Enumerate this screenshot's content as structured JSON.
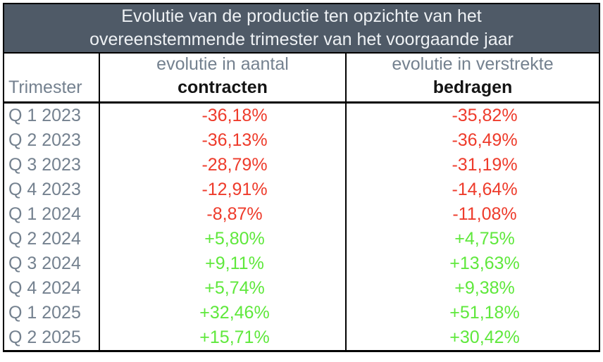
{
  "title": {
    "line1": "Evolutie van de productie ten opzichte van het",
    "line2": "overeenstemmende trimester van het voorgaande jaar"
  },
  "header": {
    "col1": "Trimester",
    "col2_line1": "evolutie in aantal",
    "col2_line2": "contracten",
    "col3_line1": "evolutie in verstrekte",
    "col3_line2": "bedragen"
  },
  "rows": [
    {
      "quarter": "Q 1 2023",
      "contracten": "-36,18%",
      "bedragen": "-35,82%"
    },
    {
      "quarter": "Q 2 2023",
      "contracten": "-36,13%",
      "bedragen": "-36,49%"
    },
    {
      "quarter": "Q 3 2023",
      "contracten": "-28,79%",
      "bedragen": "-31,19%"
    },
    {
      "quarter": "Q 4 2023",
      "contracten": "-12,91%",
      "bedragen": "-14,64%"
    },
    {
      "quarter": "Q 1 2024",
      "contracten": "-8,87%",
      "bedragen": "-11,08%"
    },
    {
      "quarter": "Q 2 2024",
      "contracten": "+5,80%",
      "bedragen": "+4,75%"
    },
    {
      "quarter": "Q 3 2024",
      "contracten": "+9,11%",
      "bedragen": "+13,63%"
    },
    {
      "quarter": "Q 4 2024",
      "contracten": "+5,74%",
      "bedragen": "+9,38%"
    },
    {
      "quarter": "Q 1 2025",
      "contracten": "+32,46%",
      "bedragen": "+51,18%"
    },
    {
      "quarter": "Q 2 2025",
      "contracten": "+15,71%",
      "bedragen": "+30,42%"
    }
  ],
  "colors": {
    "title_bg": "#4f5a67",
    "muted_text": "#74818f",
    "negative": "#ee3b2b",
    "positive": "#5fe83c",
    "border": "#000000"
  },
  "chart_data": {
    "type": "table",
    "title": "Evolutie van de productie ten opzichte van het overeenstemmende trimester van het voorgaande jaar",
    "columns": [
      "Trimester",
      "evolutie in aantal contracten",
      "evolutie in verstrekte bedragen"
    ],
    "rows": [
      [
        "Q 1 2023",
        "-36,18%",
        "-35,82%"
      ],
      [
        "Q 2 2023",
        "-36,13%",
        "-36,49%"
      ],
      [
        "Q 3 2023",
        "-28,79%",
        "-31,19%"
      ],
      [
        "Q 4 2023",
        "-12,91%",
        "-14,64%"
      ],
      [
        "Q 1 2024",
        "-8,87%",
        "-11,08%"
      ],
      [
        "Q 2 2024",
        "+5,80%",
        "+4,75%"
      ],
      [
        "Q 3 2024",
        "+9,11%",
        "+13,63%"
      ],
      [
        "Q 4 2024",
        "+5,74%",
        "+9,38%"
      ],
      [
        "Q 1 2025",
        "+32,46%",
        "+51,18%"
      ],
      [
        "Q 2 2025",
        "+15,71%",
        "+30,42%"
      ]
    ],
    "series": [
      {
        "name": "evolutie in aantal contracten",
        "values": [
          -36.18,
          -36.13,
          -28.79,
          -12.91,
          -8.87,
          5.8,
          9.11,
          5.74,
          32.46,
          15.71
        ]
      },
      {
        "name": "evolutie in verstrekte bedragen",
        "values": [
          -35.82,
          -36.49,
          -31.19,
          -14.64,
          -11.08,
          4.75,
          13.63,
          9.38,
          51.18,
          30.42
        ]
      }
    ],
    "categories": [
      "Q 1 2023",
      "Q 2 2023",
      "Q 3 2023",
      "Q 4 2023",
      "Q 1 2024",
      "Q 2 2024",
      "Q 3 2024",
      "Q 4 2024",
      "Q 1 2025",
      "Q 2 2025"
    ],
    "value_format": "percent, comma decimal separator, explicit +/- sign",
    "color_coding": {
      "negative": "red",
      "positive": "green"
    }
  }
}
